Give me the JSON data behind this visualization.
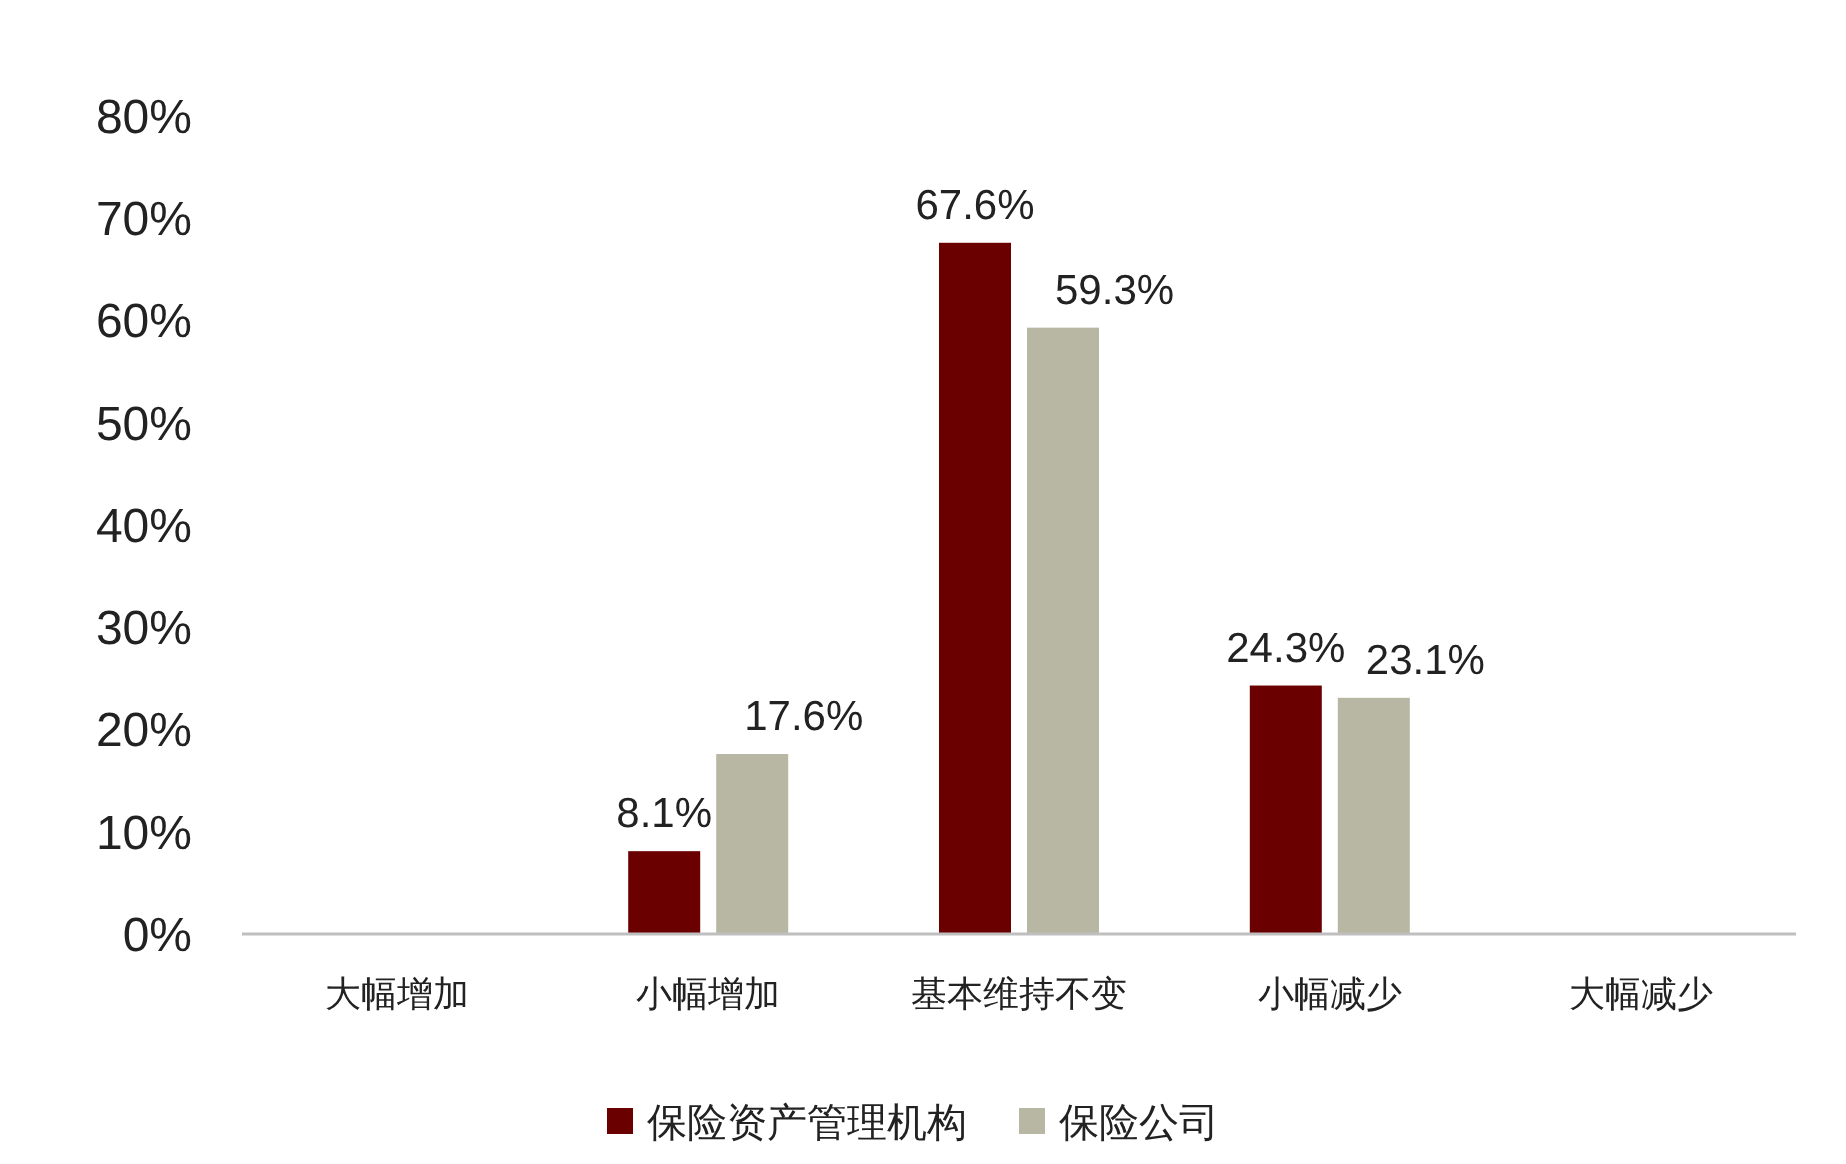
{
  "chart_data": {
    "type": "bar",
    "categories": [
      "大幅增加",
      "小幅增加",
      "基本维持不变",
      "小幅减少",
      "大幅减少"
    ],
    "series": [
      {
        "name": "保险资产管理机构",
        "color": "#6b0000",
        "values": [
          null,
          8.1,
          67.6,
          24.3,
          null
        ],
        "value_labels": [
          null,
          "8.1%",
          "67.6%",
          "24.3%",
          null
        ]
      },
      {
        "name": "保险公司",
        "color": "#b8b7a4",
        "values": [
          null,
          17.6,
          59.3,
          23.1,
          null
        ],
        "value_labels": [
          null,
          "17.6%",
          "59.3%",
          "23.1%",
          null
        ]
      }
    ],
    "ylim": [
      0,
      80
    ],
    "yticks": [
      {
        "value": 0,
        "label": "0%"
      },
      {
        "value": 10,
        "label": "10%"
      },
      {
        "value": 20,
        "label": "20%"
      },
      {
        "value": 30,
        "label": "30%"
      },
      {
        "value": 40,
        "label": "40%"
      },
      {
        "value": 50,
        "label": "50%"
      },
      {
        "value": 60,
        "label": "60%"
      },
      {
        "value": 70,
        "label": "70%"
      },
      {
        "value": 80,
        "label": "80%"
      }
    ],
    "grid": false,
    "legend": "bottom"
  }
}
